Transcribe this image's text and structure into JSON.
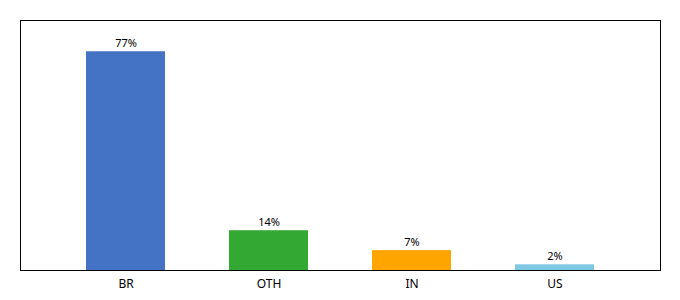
{
  "chart_data": {
    "type": "bar",
    "categories": [
      "BR",
      "OTH",
      "IN",
      "US"
    ],
    "values": [
      77,
      14,
      7,
      2
    ],
    "value_labels": [
      "77%",
      "14%",
      "7%",
      "2%"
    ],
    "colors": [
      "#4472C4",
      "#33A833",
      "#FFA500",
      "#7EC8E3"
    ],
    "ylim": [
      0,
      88
    ],
    "data_labels": true,
    "tick_labels": "x",
    "grid": false
  }
}
